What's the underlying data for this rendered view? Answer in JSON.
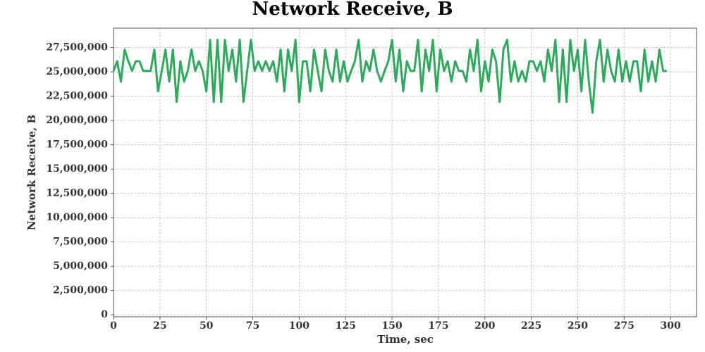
{
  "chart_data": {
    "type": "line",
    "title": "Network Receive, B",
    "x_label": "Time, sec",
    "y_label": "Network Receive, B",
    "grid": true,
    "color": "#2eaa5c",
    "xlim": [
      0,
      314
    ],
    "xticks": [
      0,
      25,
      50,
      75,
      100,
      125,
      150,
      175,
      200,
      225,
      250,
      275,
      300
    ],
    "ylim": [
      -200000,
      29500000
    ],
    "yticks": [
      0,
      {
        "value": 2500000,
        "label": "2,500,000"
      },
      {
        "value": 5000000,
        "label": "5,000,000"
      },
      {
        "value": 7500000,
        "label": "7,500,000"
      },
      {
        "value": 10000000,
        "label": "10,000,000"
      },
      {
        "value": 12500000,
        "label": "12,500,000"
      },
      {
        "value": 15000000,
        "label": "15,000,000"
      },
      {
        "value": 17500000,
        "label": "17,500,000"
      },
      {
        "value": 20000000,
        "label": "20,000,000"
      },
      {
        "value": 22500000,
        "label": "22,500,000"
      },
      {
        "value": 25000000,
        "label": "25,000,000"
      },
      {
        "value": 27500000,
        "label": "27,500,000"
      }
    ],
    "x": [
      0,
      2,
      4,
      6,
      8,
      10,
      12,
      14,
      16,
      18,
      20,
      22,
      24,
      26,
      28,
      30,
      32,
      34,
      36,
      38,
      40,
      42,
      44,
      46,
      48,
      50,
      52,
      54,
      56,
      58,
      60,
      62,
      64,
      66,
      68,
      70,
      72,
      74,
      76,
      78,
      80,
      82,
      84,
      86,
      88,
      90,
      92,
      94,
      96,
      98,
      100,
      102,
      104,
      106,
      108,
      110,
      112,
      114,
      116,
      118,
      120,
      122,
      124,
      126,
      128,
      130,
      132,
      134,
      136,
      138,
      140,
      142,
      144,
      146,
      148,
      150,
      152,
      154,
      156,
      158,
      160,
      162,
      164,
      166,
      168,
      170,
      172,
      174,
      176,
      178,
      180,
      182,
      184,
      186,
      188,
      190,
      192,
      194,
      196,
      198,
      200,
      202,
      204,
      206,
      208,
      210,
      212,
      214,
      216,
      218,
      220,
      222,
      224,
      226,
      228,
      230,
      232,
      234,
      236,
      238,
      240,
      242,
      244,
      246,
      248,
      250,
      252,
      254,
      256,
      258,
      260,
      262,
      264,
      266,
      268,
      270,
      272,
      274,
      276,
      278,
      280,
      282,
      284,
      286,
      288,
      290,
      292,
      294,
      296,
      298
    ],
    "values": [
      25100000,
      26100000,
      24000000,
      27300000,
      26100000,
      25100000,
      26100000,
      26100000,
      25100000,
      25100000,
      25100000,
      27300000,
      23000000,
      25100000,
      27300000,
      24000000,
      27300000,
      21900000,
      26100000,
      24000000,
      25100000,
      27300000,
      25100000,
      26100000,
      25100000,
      23000000,
      28300000,
      21900000,
      28300000,
      21900000,
      28300000,
      25100000,
      27300000,
      24000000,
      28300000,
      21900000,
      25100000,
      28300000,
      25100000,
      26100000,
      25100000,
      26100000,
      25100000,
      26100000,
      24000000,
      27300000,
      23000000,
      27300000,
      25100000,
      28300000,
      21900000,
      26100000,
      26100000,
      23000000,
      27300000,
      25100000,
      23000000,
      27300000,
      25100000,
      24000000,
      27300000,
      24000000,
      26100000,
      24000000,
      25100000,
      26100000,
      28300000,
      24000000,
      26100000,
      25100000,
      27300000,
      25100000,
      24000000,
      25100000,
      26100000,
      28300000,
      24000000,
      27300000,
      23000000,
      26100000,
      25100000,
      25100000,
      28300000,
      23000000,
      27300000,
      25100000,
      28300000,
      23000000,
      27300000,
      25100000,
      26100000,
      24000000,
      26100000,
      25100000,
      25100000,
      24000000,
      27300000,
      25100000,
      28300000,
      23000000,
      26100000,
      24000000,
      27300000,
      26100000,
      21900000,
      27300000,
      28300000,
      24000000,
      26100000,
      24000000,
      25100000,
      24000000,
      26100000,
      26100000,
      25100000,
      26100000,
      24000000,
      27300000,
      25100000,
      28300000,
      21900000,
      27300000,
      21900000,
      28300000,
      25100000,
      27300000,
      23000000,
      28300000,
      24000000,
      20800000,
      26100000,
      28300000,
      24000000,
      27300000,
      25100000,
      24000000,
      27300000,
      24000000,
      26100000,
      24000000,
      26100000,
      26100000,
      23000000,
      27300000,
      24000000,
      26100000,
      24000000,
      27300000,
      25100000,
      25100000
    ]
  }
}
